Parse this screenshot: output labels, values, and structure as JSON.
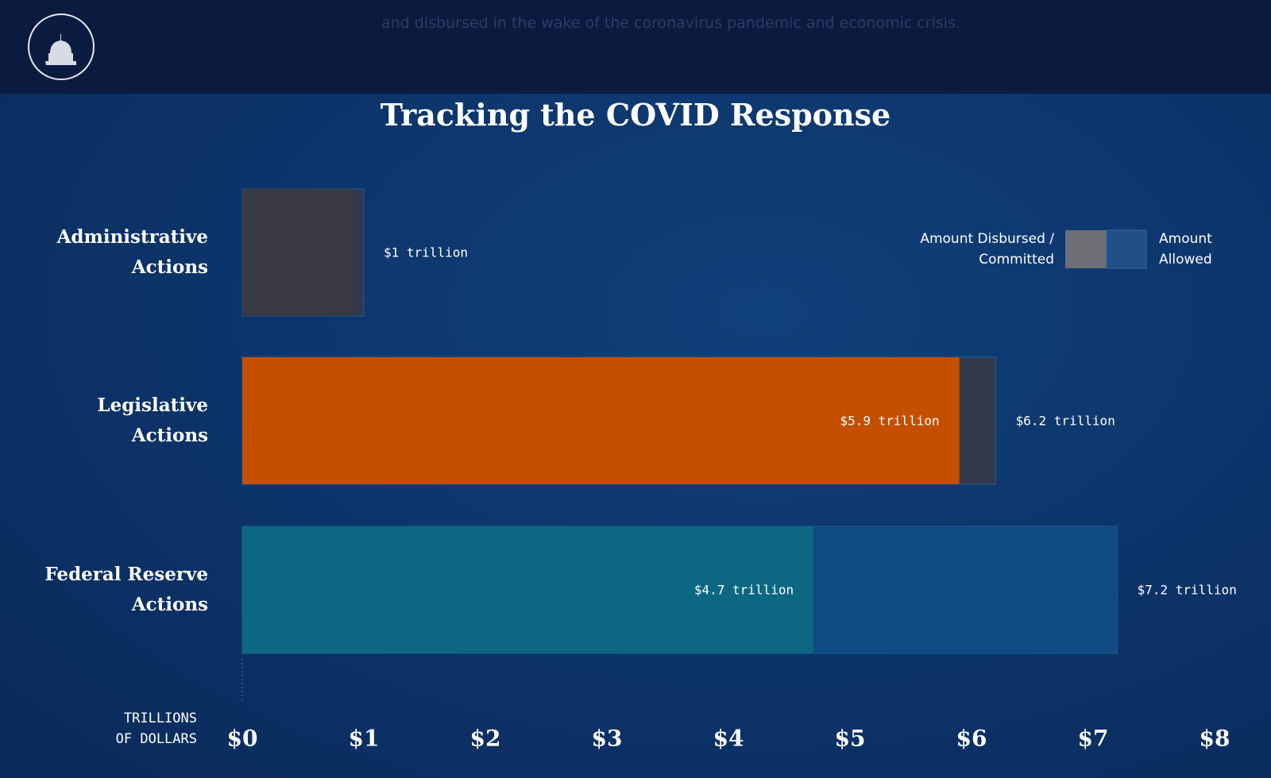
{
  "header": {
    "text": "and disbursed in the wake of the coronavirus pandemic and economic crisis."
  },
  "chart_data": {
    "type": "bar",
    "orientation": "horizontal",
    "title": "Tracking the COVID Response",
    "categories": [
      "Administrative Actions",
      "Legislative Actions",
      "Federal Reserve Actions"
    ],
    "series": [
      {
        "name": "Amount Allowed",
        "color": "#1f4f86",
        "colors": [
          "#33384a",
          "#33384a",
          "#0f4a82"
        ],
        "values": [
          1,
          6.2,
          7.2
        ],
        "value_labels": [
          "$1 trillion",
          "$6.2 trillion",
          "$7.2 trillion"
        ]
      },
      {
        "name": "Amount Disbursed / Committed",
        "color": "#6e6e74",
        "colors": [
          "#3a3a42",
          "#c44f00",
          "#0c6882"
        ],
        "values": [
          0.9,
          5.9,
          4.7
        ],
        "value_labels": [
          null,
          "$5.9 trillion",
          "$4.7 trillion"
        ]
      }
    ],
    "x_axis_label": "TRILLIONS OF DOLLARS",
    "xlim": [
      0,
      8
    ],
    "xticks": [
      {
        "value": 0,
        "label": "$0"
      },
      {
        "value": 1,
        "label": "$1"
      },
      {
        "value": 2,
        "label": "$2"
      },
      {
        "value": 3,
        "label": "$3"
      },
      {
        "value": 4,
        "label": "$4"
      },
      {
        "value": 5,
        "label": "$5"
      },
      {
        "value": 6,
        "label": "$6"
      },
      {
        "value": 7,
        "label": "$7"
      },
      {
        "value": 8,
        "label": "$8"
      }
    ]
  }
}
